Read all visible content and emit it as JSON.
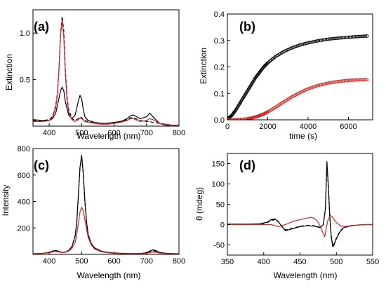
{
  "chart_data": [
    {
      "panel": "(a)",
      "type": "line",
      "xlabel": "Wavelength (nm)",
      "ylabel": "Extinction",
      "xlim": [
        350,
        800
      ],
      "ylim": [
        0,
        1.25
      ],
      "xticks": [
        400,
        500,
        600,
        700,
        800
      ],
      "xtick_labels": [
        "400",
        "500",
        "600",
        "700",
        "800"
      ],
      "yticks": [
        0.5,
        1.0
      ],
      "ytick_labels": [
        "0.5",
        "1.0"
      ],
      "series": [
        {
          "color": "#000000",
          "dash": "none",
          "width": 1.2,
          "x": [
            350,
            380,
            400,
            410,
            420,
            430,
            435,
            440,
            445,
            450,
            460,
            470,
            480,
            490,
            495,
            500,
            505,
            510,
            520,
            540,
            560,
            580,
            600,
            620,
            640,
            650,
            660,
            680,
            700,
            710,
            720,
            740,
            760,
            780,
            800
          ],
          "y": [
            0.07,
            0.06,
            0.06,
            0.08,
            0.14,
            0.3,
            0.38,
            0.42,
            0.38,
            0.26,
            0.12,
            0.08,
            0.12,
            0.27,
            0.33,
            0.3,
            0.18,
            0.1,
            0.06,
            0.04,
            0.03,
            0.03,
            0.04,
            0.05,
            0.08,
            0.11,
            0.12,
            0.08,
            0.1,
            0.14,
            0.1,
            0.03,
            0.01,
            0.01,
            0.01
          ]
        },
        {
          "color": "#000000",
          "dash": "5,3",
          "width": 1.2,
          "x": [
            350,
            380,
            400,
            410,
            420,
            425,
            430,
            435,
            440,
            445,
            450,
            455,
            460,
            470,
            480,
            490,
            495,
            500,
            510,
            520,
            540,
            560,
            580,
            600,
            620,
            640,
            650,
            660,
            680,
            700,
            710,
            720,
            740,
            760,
            780,
            800
          ],
          "y": [
            0.06,
            0.06,
            0.07,
            0.1,
            0.22,
            0.35,
            0.62,
            1.0,
            1.18,
            1.02,
            0.6,
            0.32,
            0.18,
            0.08,
            0.06,
            0.08,
            0.1,
            0.09,
            0.06,
            0.05,
            0.04,
            0.03,
            0.03,
            0.04,
            0.05,
            0.07,
            0.09,
            0.09,
            0.06,
            0.05,
            0.05,
            0.04,
            0.03,
            0.02,
            0.01,
            0.01
          ]
        },
        {
          "color": "#e0201a",
          "dash": "none",
          "width": 1.2,
          "x": [
            350,
            380,
            400,
            410,
            420,
            425,
            430,
            435,
            440,
            445,
            450,
            455,
            460,
            470,
            480,
            490,
            495,
            500,
            510,
            520,
            540,
            560,
            580,
            600,
            620,
            640,
            650,
            660,
            680,
            700,
            710,
            720,
            740,
            760,
            780,
            800
          ],
          "y": [
            0.05,
            0.05,
            0.06,
            0.09,
            0.2,
            0.33,
            0.6,
            0.98,
            1.14,
            0.95,
            0.55,
            0.28,
            0.15,
            0.07,
            0.05,
            0.07,
            0.09,
            0.08,
            0.05,
            0.04,
            0.03,
            0.02,
            0.02,
            0.03,
            0.04,
            0.06,
            0.08,
            0.08,
            0.05,
            0.06,
            0.08,
            0.07,
            0.03,
            0.02,
            0.01,
            0.01
          ]
        }
      ]
    },
    {
      "panel": "(b)",
      "type": "scatter",
      "xlabel": "time (s)",
      "ylabel": "Extinction",
      "xlim": [
        0,
        7200
      ],
      "ylim": [
        0,
        0.4
      ],
      "xticks": [
        0,
        2000,
        4000,
        6000
      ],
      "xtick_labels": [
        "0",
        "2000",
        "4000",
        "6000"
      ],
      "yticks": [
        0,
        0.1,
        0.2,
        0.3,
        0.4
      ],
      "ytick_labels": [
        "0.0",
        "0.1",
        "0.2",
        "0.3",
        "0.4"
      ],
      "series": [
        {
          "color": "#000000",
          "marker": "open-circle",
          "x": [
            0,
            200,
            400,
            600,
            800,
            1000,
            1200,
            1400,
            1600,
            1800,
            2000,
            2400,
            2800,
            3200,
            3600,
            4000,
            4500,
            5000,
            5500,
            6000,
            6500,
            7000
          ],
          "y": [
            0.005,
            0.015,
            0.035,
            0.06,
            0.085,
            0.11,
            0.135,
            0.16,
            0.18,
            0.2,
            0.215,
            0.24,
            0.258,
            0.272,
            0.283,
            0.291,
            0.299,
            0.305,
            0.309,
            0.312,
            0.315,
            0.317
          ]
        },
        {
          "color": "#e0201a",
          "marker": "open-circle",
          "x": [
            0,
            500,
            1000,
            1200,
            1400,
            1600,
            1800,
            2000,
            2400,
            2800,
            3200,
            3600,
            4000,
            4500,
            5000,
            5500,
            6000,
            6500,
            7000
          ],
          "y": [
            0.0,
            0.001,
            0.004,
            0.007,
            0.011,
            0.016,
            0.022,
            0.03,
            0.048,
            0.068,
            0.087,
            0.103,
            0.117,
            0.13,
            0.139,
            0.145,
            0.149,
            0.151,
            0.152
          ]
        }
      ]
    },
    {
      "panel": "(c)",
      "type": "line",
      "xlabel": "Wavelength (nm)",
      "ylabel": "Intensity",
      "xlim": [
        350,
        800
      ],
      "ylim": [
        0,
        800
      ],
      "xticks": [
        400,
        500,
        600,
        700,
        800
      ],
      "xtick_labels": [
        "400",
        "500",
        "600",
        "700",
        "800"
      ],
      "yticks": [
        200,
        400,
        600,
        800
      ],
      "ytick_labels": [
        "200",
        "400",
        "600",
        "800"
      ],
      "series": [
        {
          "color": "#000000",
          "dash": "none",
          "width": 1.2,
          "x": [
            350,
            380,
            400,
            410,
            420,
            430,
            440,
            450,
            460,
            470,
            480,
            485,
            490,
            495,
            500,
            505,
            510,
            515,
            520,
            530,
            540,
            560,
            580,
            600,
            620,
            650,
            680,
            700,
            710,
            720,
            730,
            740,
            760,
            800
          ],
          "y": [
            5,
            8,
            15,
            25,
            30,
            22,
            15,
            18,
            30,
            60,
            140,
            250,
            450,
            660,
            750,
            620,
            400,
            250,
            150,
            80,
            50,
            25,
            15,
            10,
            8,
            6,
            6,
            12,
            25,
            35,
            28,
            15,
            8,
            5
          ]
        },
        {
          "color": "#000000",
          "dash": "5,3",
          "width": 1.2,
          "x": [
            350,
            380,
            400,
            410,
            420,
            430,
            440,
            450,
            460,
            470,
            480,
            485,
            490,
            495,
            500,
            505,
            510,
            515,
            520,
            530,
            540,
            560,
            580,
            600,
            620,
            650,
            680,
            700,
            710,
            720,
            730,
            740,
            760,
            800
          ],
          "y": [
            5,
            8,
            14,
            22,
            26,
            20,
            14,
            16,
            28,
            58,
            135,
            245,
            440,
            650,
            740,
            610,
            395,
            245,
            148,
            78,
            48,
            24,
            14,
            10,
            8,
            6,
            6,
            10,
            20,
            28,
            22,
            12,
            7,
            5
          ]
        },
        {
          "color": "#e0201a",
          "dash": "none",
          "width": 1.2,
          "x": [
            350,
            380,
            400,
            410,
            420,
            430,
            440,
            450,
            460,
            470,
            480,
            485,
            490,
            495,
            500,
            505,
            510,
            515,
            520,
            530,
            540,
            560,
            580,
            600,
            620,
            650,
            680,
            700,
            710,
            720,
            730,
            740,
            760,
            800
          ],
          "y": [
            5,
            8,
            12,
            18,
            22,
            18,
            14,
            16,
            25,
            45,
            90,
            150,
            240,
            320,
            355,
            330,
            260,
            190,
            130,
            70,
            40,
            20,
            12,
            8,
            6,
            5,
            5,
            8,
            14,
            18,
            15,
            10,
            6,
            4
          ]
        }
      ]
    },
    {
      "panel": "(d)",
      "type": "line",
      "xlabel": "Wavelength (nm)",
      "ylabel": "θ (mdeg)",
      "xlim": [
        350,
        550
      ],
      "ylim": [
        -75,
        175
      ],
      "xticks": [
        350,
        400,
        450,
        500,
        550
      ],
      "xtick_labels": [
        "350",
        "400",
        "450",
        "500",
        "550"
      ],
      "yticks": [
        -50,
        0,
        50,
        100,
        150
      ],
      "ytick_labels": [
        "-50",
        "0",
        "50",
        "100",
        "150"
      ],
      "series": [
        {
          "color": "#000000",
          "dash": "none",
          "width": 1.2,
          "x": [
            350,
            380,
            395,
            405,
            410,
            415,
            420,
            425,
            430,
            440,
            450,
            460,
            470,
            478,
            482,
            485,
            487,
            489,
            491,
            493,
            495,
            497,
            500,
            505,
            510,
            520,
            530,
            540,
            550
          ],
          "y": [
            1,
            1,
            2,
            6,
            12,
            14,
            8,
            -5,
            -15,
            -10,
            -5,
            -3,
            -4,
            -8,
            0,
            40,
            155,
            95,
            20,
            -30,
            -55,
            -50,
            -35,
            -18,
            -8,
            -3,
            -1,
            0,
            0
          ]
        },
        {
          "color": "#000000",
          "dash": "5,3",
          "width": 1.2,
          "x": [
            350,
            380,
            395,
            405,
            410,
            415,
            420,
            425,
            430,
            440,
            450,
            460,
            470,
            478,
            482,
            485,
            487,
            489,
            491,
            493,
            495,
            497,
            500,
            505,
            510,
            520,
            530,
            540,
            550
          ],
          "y": [
            0,
            0,
            1,
            5,
            10,
            12,
            7,
            -4,
            -13,
            -9,
            -4,
            -2,
            -3,
            -7,
            0,
            38,
            150,
            90,
            18,
            -28,
            -52,
            -47,
            -33,
            -16,
            -7,
            -2,
            -1,
            0,
            0
          ]
        },
        {
          "color": "#e0201a",
          "dash": "none",
          "width": 1.2,
          "x": [
            350,
            380,
            400,
            410,
            415,
            420,
            430,
            440,
            450,
            460,
            465,
            470,
            475,
            478,
            481,
            484,
            486,
            488,
            490,
            492,
            494,
            497,
            500,
            505,
            510,
            520,
            530,
            540,
            550
          ],
          "y": [
            0,
            0,
            0,
            0,
            -2,
            -5,
            0,
            8,
            12,
            16,
            18,
            15,
            6,
            -5,
            -18,
            -30,
            -10,
            8,
            18,
            22,
            20,
            12,
            5,
            -2,
            -5,
            -3,
            -1,
            0,
            0
          ]
        }
      ]
    }
  ]
}
